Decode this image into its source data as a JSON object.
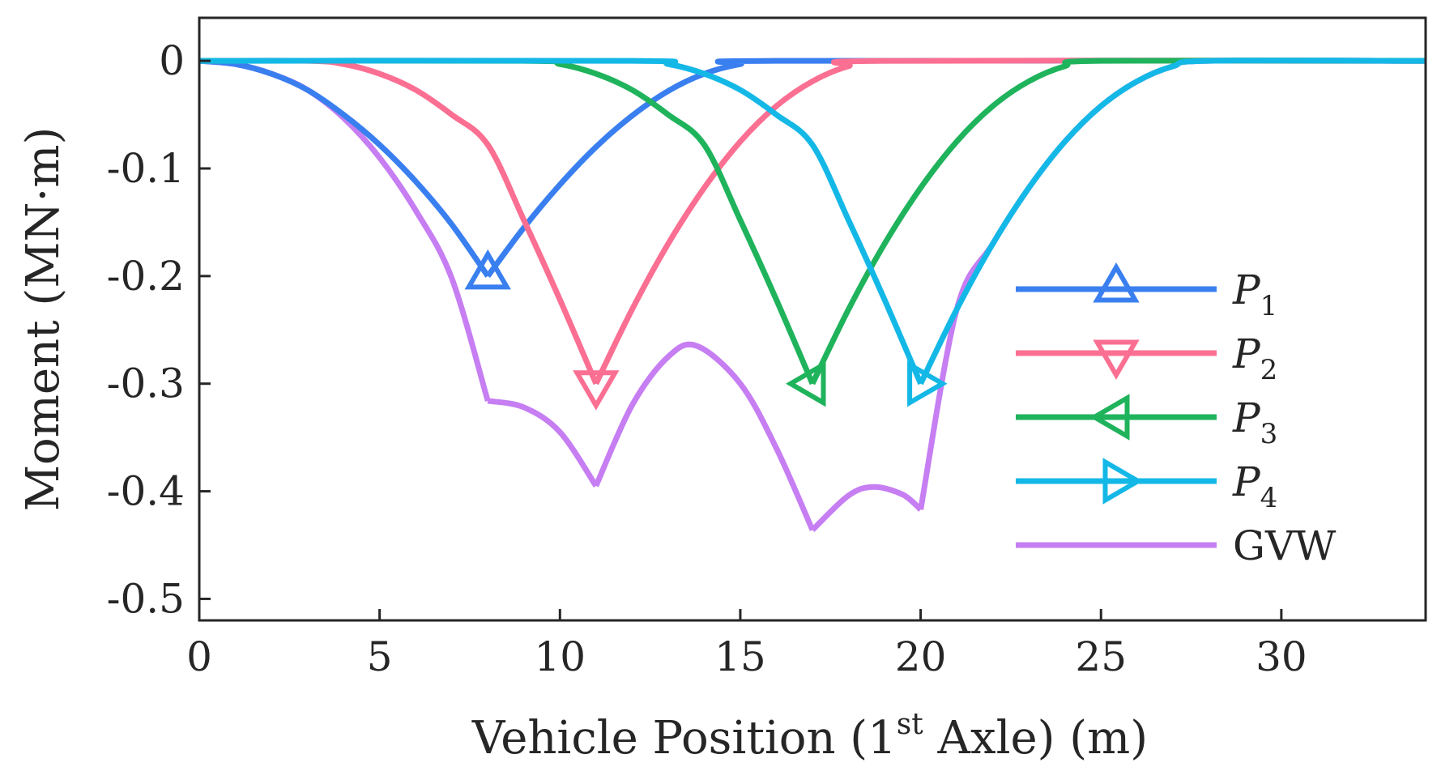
{
  "chart_data": {
    "type": "line",
    "title": "",
    "xlabel": "Vehicle Position (1",
    "xlabel_sup": "st",
    "xlabel_tail": " Axle) (m)",
    "ylabel": "Moment (MN·m)",
    "xlim": [
      0,
      34
    ],
    "ylim": [
      -0.52,
      0.04
    ],
    "xticks": [
      0,
      5,
      10,
      15,
      20,
      25,
      30
    ],
    "yticks": [
      0,
      -0.1,
      -0.2,
      -0.3,
      -0.4,
      -0.5
    ],
    "xtick_labels": [
      "0",
      "5",
      "10",
      "15",
      "20",
      "25",
      "30"
    ],
    "ytick_labels": [
      "0",
      "-0.1",
      "-0.2",
      "-0.3",
      "-0.4",
      "-0.5"
    ],
    "grid": false,
    "legend_position": "right",
    "series": [
      {
        "name": "P",
        "subscript": "1",
        "color": "#3a7ff0",
        "marker": "triangle-up",
        "marker_at": [
          8,
          -0.2
        ],
        "x": [
          0,
          1,
          2,
          3,
          4,
          5,
          6,
          7,
          8,
          9,
          10,
          11,
          12,
          13,
          14,
          15,
          16,
          34
        ],
        "y": [
          0,
          -0.003,
          -0.012,
          -0.027,
          -0.05,
          -0.078,
          -0.112,
          -0.152,
          -0.2,
          -0.155,
          -0.115,
          -0.08,
          -0.051,
          -0.028,
          -0.012,
          -0.003,
          0,
          0
        ]
      },
      {
        "name": "P",
        "subscript": "2",
        "color": "#fb6f92",
        "marker": "triangle-down",
        "marker_at": [
          11,
          -0.3
        ],
        "x": [
          0,
          3,
          4,
          5,
          6,
          7,
          8,
          9,
          10,
          11,
          12,
          13,
          14,
          15,
          16,
          17,
          18,
          19,
          34
        ],
        "y": [
          0,
          0,
          -0.003,
          -0.012,
          -0.027,
          -0.05,
          -0.078,
          -0.148,
          -0.222,
          -0.3,
          -0.231,
          -0.17,
          -0.118,
          -0.075,
          -0.042,
          -0.019,
          -0.005,
          0,
          0
        ]
      },
      {
        "name": "P",
        "subscript": "3",
        "color": "#1fb35c",
        "marker": "triangle-left",
        "marker_at": [
          17,
          -0.3
        ],
        "x": [
          0,
          9,
          10,
          11,
          12,
          13,
          14,
          15,
          16,
          17,
          18,
          19,
          20,
          21,
          22,
          23,
          24,
          25,
          34
        ],
        "y": [
          0,
          0,
          -0.003,
          -0.012,
          -0.027,
          -0.05,
          -0.078,
          -0.148,
          -0.222,
          -0.3,
          -0.231,
          -0.17,
          -0.118,
          -0.075,
          -0.042,
          -0.019,
          -0.005,
          0,
          0
        ]
      },
      {
        "name": "P",
        "subscript": "4",
        "color": "#14b8e6",
        "marker": "triangle-right",
        "marker_at": [
          20,
          -0.3
        ],
        "x": [
          0,
          12,
          13,
          14,
          15,
          16,
          17,
          18,
          19,
          20,
          21,
          22,
          23,
          24,
          25,
          26,
          27,
          28,
          34
        ],
        "y": [
          0,
          0,
          -0.003,
          -0.012,
          -0.027,
          -0.05,
          -0.078,
          -0.148,
          -0.222,
          -0.3,
          -0.231,
          -0.17,
          -0.118,
          -0.075,
          -0.042,
          -0.019,
          -0.005,
          0,
          0
        ]
      },
      {
        "name": "GVW",
        "color": "#c67ef2",
        "marker": "none",
        "x": [
          0,
          1,
          2,
          3,
          4,
          5,
          6,
          7,
          8,
          9,
          10,
          11,
          12,
          13,
          13.8,
          15,
          16,
          17,
          18,
          18.7,
          19.5,
          20,
          21,
          22,
          23,
          24,
          25,
          26,
          27,
          28,
          34
        ],
        "y": [
          0,
          -0.003,
          -0.012,
          -0.027,
          -0.053,
          -0.09,
          -0.139,
          -0.202,
          -0.316,
          -0.322,
          -0.345,
          -0.395,
          -0.32,
          -0.275,
          -0.265,
          -0.3,
          -0.36,
          -0.436,
          -0.404,
          -0.396,
          -0.403,
          -0.417,
          -0.231,
          -0.17,
          -0.118,
          -0.075,
          -0.042,
          -0.019,
          -0.005,
          0,
          0
        ]
      }
    ]
  }
}
